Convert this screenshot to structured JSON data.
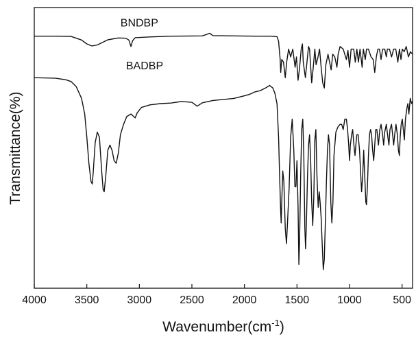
{
  "chart_data": {
    "type": "line",
    "xlabel": "Wavenumber(cm",
    "xlabel_sup": "-1",
    "xlabel_end": ")",
    "ylabel": "Transmittance(%)",
    "xlim": [
      4000,
      400
    ],
    "ylim": [
      0,
      100
    ],
    "x_ticks": [
      "4000",
      "3500",
      "3000",
      "2500",
      "2000",
      "1500",
      "1000",
      "500"
    ],
    "x_tick_values": [
      4000,
      3500,
      3000,
      2500,
      2000,
      1500,
      1000,
      500
    ],
    "grid": false,
    "series": [
      {
        "name": "BNDBP",
        "color": "#111111",
        "points": [
          [
            4000,
            94.0
          ],
          [
            3800,
            94.0
          ],
          [
            3650,
            93.9
          ],
          [
            3550,
            92.5
          ],
          [
            3500,
            91.0
          ],
          [
            3450,
            90.2
          ],
          [
            3400,
            90.6
          ],
          [
            3350,
            91.6
          ],
          [
            3300,
            92.6
          ],
          [
            3200,
            93.3
          ],
          [
            3130,
            93.2
          ],
          [
            3100,
            92.5
          ],
          [
            3080,
            90.0
          ],
          [
            3065,
            92.2
          ],
          [
            3040,
            93.4
          ],
          [
            2900,
            93.7
          ],
          [
            2700,
            94.0
          ],
          [
            2400,
            94.1
          ],
          [
            2330,
            95.1
          ],
          [
            2300,
            94.2
          ],
          [
            2100,
            94.1
          ],
          [
            1900,
            94.0
          ],
          [
            1750,
            94.0
          ],
          [
            1690,
            93.8
          ],
          [
            1675,
            92.0
          ],
          [
            1660,
            85.0
          ],
          [
            1655,
            80.0
          ],
          [
            1645,
            85.0
          ],
          [
            1628,
            84.0
          ],
          [
            1612,
            78.0
          ],
          [
            1598,
            84.0
          ],
          [
            1580,
            89.0
          ],
          [
            1560,
            86.0
          ],
          [
            1540,
            89.0
          ],
          [
            1518,
            82.0
          ],
          [
            1505,
            86.0
          ],
          [
            1490,
            77.0
          ],
          [
            1475,
            82.0
          ],
          [
            1460,
            89.0
          ],
          [
            1448,
            91.0
          ],
          [
            1440,
            84.0
          ],
          [
            1420,
            78.0
          ],
          [
            1405,
            84.0
          ],
          [
            1390,
            90.0
          ],
          [
            1380,
            89.0
          ],
          [
            1360,
            76.0
          ],
          [
            1345,
            82.0
          ],
          [
            1330,
            89.0
          ],
          [
            1318,
            83.0
          ],
          [
            1300,
            86.0
          ],
          [
            1285,
            89.0
          ],
          [
            1270,
            82.0
          ],
          [
            1255,
            76.0
          ],
          [
            1240,
            74.0
          ],
          [
            1225,
            83.0
          ],
          [
            1205,
            87.0
          ],
          [
            1190,
            84.0
          ],
          [
            1175,
            81.0
          ],
          [
            1160,
            87.0
          ],
          [
            1140,
            86.0
          ],
          [
            1120,
            82.0
          ],
          [
            1108,
            87.0
          ],
          [
            1090,
            90.0
          ],
          [
            1060,
            89.0
          ],
          [
            1030,
            85.0
          ],
          [
            1015,
            88.5
          ],
          [
            1000,
            82.0
          ],
          [
            985,
            89.0
          ],
          [
            960,
            89.0
          ],
          [
            945,
            84.0
          ],
          [
            930,
            89.0
          ],
          [
            915,
            84.0
          ],
          [
            900,
            89.0
          ],
          [
            880,
            82.0
          ],
          [
            868,
            89.0
          ],
          [
            850,
            85.0
          ],
          [
            838,
            89.0
          ],
          [
            820,
            89.0
          ],
          [
            795,
            86.0
          ],
          [
            775,
            85.0
          ],
          [
            760,
            80.0
          ],
          [
            745,
            86.0
          ],
          [
            730,
            89.0
          ],
          [
            715,
            89.0
          ],
          [
            700,
            85.0
          ],
          [
            685,
            89.0
          ],
          [
            665,
            89.0
          ],
          [
            650,
            86.0
          ],
          [
            640,
            89.0
          ],
          [
            620,
            89.0
          ],
          [
            600,
            86.0
          ],
          [
            580,
            89.0
          ],
          [
            560,
            89.0
          ],
          [
            540,
            84.0
          ],
          [
            525,
            89.0
          ],
          [
            510,
            85.0
          ],
          [
            498,
            89.0
          ],
          [
            480,
            88.0
          ],
          [
            460,
            90.0
          ],
          [
            440,
            86.0
          ],
          [
            420,
            88.0
          ],
          [
            400,
            87.0
          ]
        ]
      },
      {
        "name": "BADBP",
        "color": "#111111",
        "points": [
          [
            4000,
            78.0
          ],
          [
            3800,
            77.8
          ],
          [
            3700,
            77.2
          ],
          [
            3650,
            76.5
          ],
          [
            3600,
            74.5
          ],
          [
            3550,
            70.0
          ],
          [
            3520,
            64.0
          ],
          [
            3500,
            55.0
          ],
          [
            3480,
            45.0
          ],
          [
            3460,
            38.0
          ],
          [
            3448,
            37.0
          ],
          [
            3440,
            41.0
          ],
          [
            3420,
            53.0
          ],
          [
            3400,
            57.0
          ],
          [
            3380,
            55.0
          ],
          [
            3360,
            43.0
          ],
          [
            3345,
            35.0
          ],
          [
            3335,
            34.0
          ],
          [
            3320,
            40.0
          ],
          [
            3300,
            50.0
          ],
          [
            3280,
            52.0
          ],
          [
            3260,
            50.0
          ],
          [
            3240,
            46.0
          ],
          [
            3220,
            45.0
          ],
          [
            3200,
            49.0
          ],
          [
            3180,
            56.0
          ],
          [
            3150,
            60.0
          ],
          [
            3120,
            63.0
          ],
          [
            3080,
            64.0
          ],
          [
            3040,
            62.5
          ],
          [
            3020,
            64.5
          ],
          [
            2980,
            66.5
          ],
          [
            2900,
            67.5
          ],
          [
            2800,
            68.0
          ],
          [
            2700,
            68.2
          ],
          [
            2600,
            68.8
          ],
          [
            2500,
            68.5
          ],
          [
            2450,
            67.0
          ],
          [
            2400,
            68.3
          ],
          [
            2300,
            69.2
          ],
          [
            2200,
            69.6
          ],
          [
            2100,
            70.0
          ],
          [
            2000,
            71.0
          ],
          [
            1950,
            71.6
          ],
          [
            1900,
            72.5
          ],
          [
            1850,
            73.0
          ],
          [
            1800,
            74.0
          ],
          [
            1760,
            75.0
          ],
          [
            1730,
            74.0
          ],
          [
            1710,
            72.0
          ],
          [
            1690,
            68.0
          ],
          [
            1675,
            55.0
          ],
          [
            1665,
            40.0
          ],
          [
            1655,
            26.0
          ],
          [
            1650,
            22.0
          ],
          [
            1645,
            30.0
          ],
          [
            1635,
            42.0
          ],
          [
            1625,
            38.0
          ],
          [
            1612,
            20.0
          ],
          [
            1600,
            14.0
          ],
          [
            1590,
            22.0
          ],
          [
            1575,
            35.0
          ],
          [
            1560,
            55.0
          ],
          [
            1545,
            62.0
          ],
          [
            1530,
            50.0
          ],
          [
            1520,
            36.0
          ],
          [
            1510,
            36.0
          ],
          [
            1500,
            46.0
          ],
          [
            1490,
            28.0
          ],
          [
            1482,
            6.0
          ],
          [
            1475,
            16.0
          ],
          [
            1465,
            40.0
          ],
          [
            1455,
            58.0
          ],
          [
            1445,
            62.0
          ],
          [
            1435,
            48.0
          ],
          [
            1425,
            20.0
          ],
          [
            1418,
            12.0
          ],
          [
            1410,
            22.0
          ],
          [
            1400,
            40.0
          ],
          [
            1390,
            52.0
          ],
          [
            1380,
            56.0
          ],
          [
            1370,
            46.0
          ],
          [
            1360,
            30.0
          ],
          [
            1350,
            21.0
          ],
          [
            1340,
            32.0
          ],
          [
            1330,
            54.0
          ],
          [
            1320,
            58.0
          ],
          [
            1310,
            40.0
          ],
          [
            1298,
            28.0
          ],
          [
            1288,
            34.0
          ],
          [
            1280,
            30.0
          ],
          [
            1270,
            24.0
          ],
          [
            1260,
            14.0
          ],
          [
            1250,
            4.0
          ],
          [
            1240,
            8.0
          ],
          [
            1230,
            22.0
          ],
          [
            1220,
            38.0
          ],
          [
            1210,
            50.0
          ],
          [
            1200,
            56.0
          ],
          [
            1190,
            52.0
          ],
          [
            1178,
            30.0
          ],
          [
            1168,
            22.0
          ],
          [
            1158,
            30.0
          ],
          [
            1148,
            48.0
          ],
          [
            1130,
            57.0
          ],
          [
            1110,
            59.0
          ],
          [
            1090,
            60.0
          ],
          [
            1075,
            60.0
          ],
          [
            1060,
            58.0
          ],
          [
            1045,
            62.0
          ],
          [
            1030,
            62.0
          ],
          [
            1018,
            58.0
          ],
          [
            1008,
            52.0
          ],
          [
            1000,
            46.0
          ],
          [
            992,
            52.0
          ],
          [
            980,
            56.0
          ],
          [
            970,
            58.0
          ],
          [
            958,
            52.0
          ],
          [
            948,
            48.0
          ],
          [
            940,
            52.0
          ],
          [
            930,
            56.0
          ],
          [
            918,
            56.0
          ],
          [
            905,
            50.0
          ],
          [
            895,
            42.0
          ],
          [
            885,
            34.0
          ],
          [
            875,
            40.0
          ],
          [
            865,
            50.0
          ],
          [
            855,
            40.0
          ],
          [
            845,
            30.0
          ],
          [
            838,
            29.0
          ],
          [
            830,
            36.0
          ],
          [
            820,
            48.0
          ],
          [
            810,
            56.0
          ],
          [
            800,
            58.0
          ],
          [
            790,
            56.0
          ],
          [
            780,
            50.0
          ],
          [
            770,
            46.0
          ],
          [
            760,
            52.0
          ],
          [
            750,
            58.0
          ],
          [
            740,
            58.0
          ],
          [
            725,
            52.0
          ],
          [
            712,
            58.0
          ],
          [
            700,
            60.0
          ],
          [
            685,
            56.0
          ],
          [
            675,
            52.0
          ],
          [
            665,
            57.0
          ],
          [
            650,
            60.0
          ],
          [
            635,
            55.0
          ],
          [
            625,
            52.0
          ],
          [
            615,
            58.0
          ],
          [
            600,
            60.0
          ],
          [
            590,
            56.0
          ],
          [
            580,
            52.0
          ],
          [
            570,
            56.0
          ],
          [
            558,
            60.0
          ],
          [
            545,
            56.0
          ],
          [
            535,
            50.0
          ],
          [
            525,
            48.0
          ],
          [
            518,
            55.0
          ],
          [
            508,
            60.0
          ],
          [
            498,
            62.0
          ],
          [
            488,
            58.0
          ],
          [
            478,
            54.0
          ],
          [
            468,
            62.0
          ],
          [
            455,
            66.0
          ],
          [
            445,
            68.0
          ],
          [
            435,
            64.0
          ],
          [
            422,
            70.0
          ],
          [
            410,
            68.0
          ],
          [
            400,
            69.0
          ]
        ]
      }
    ]
  }
}
